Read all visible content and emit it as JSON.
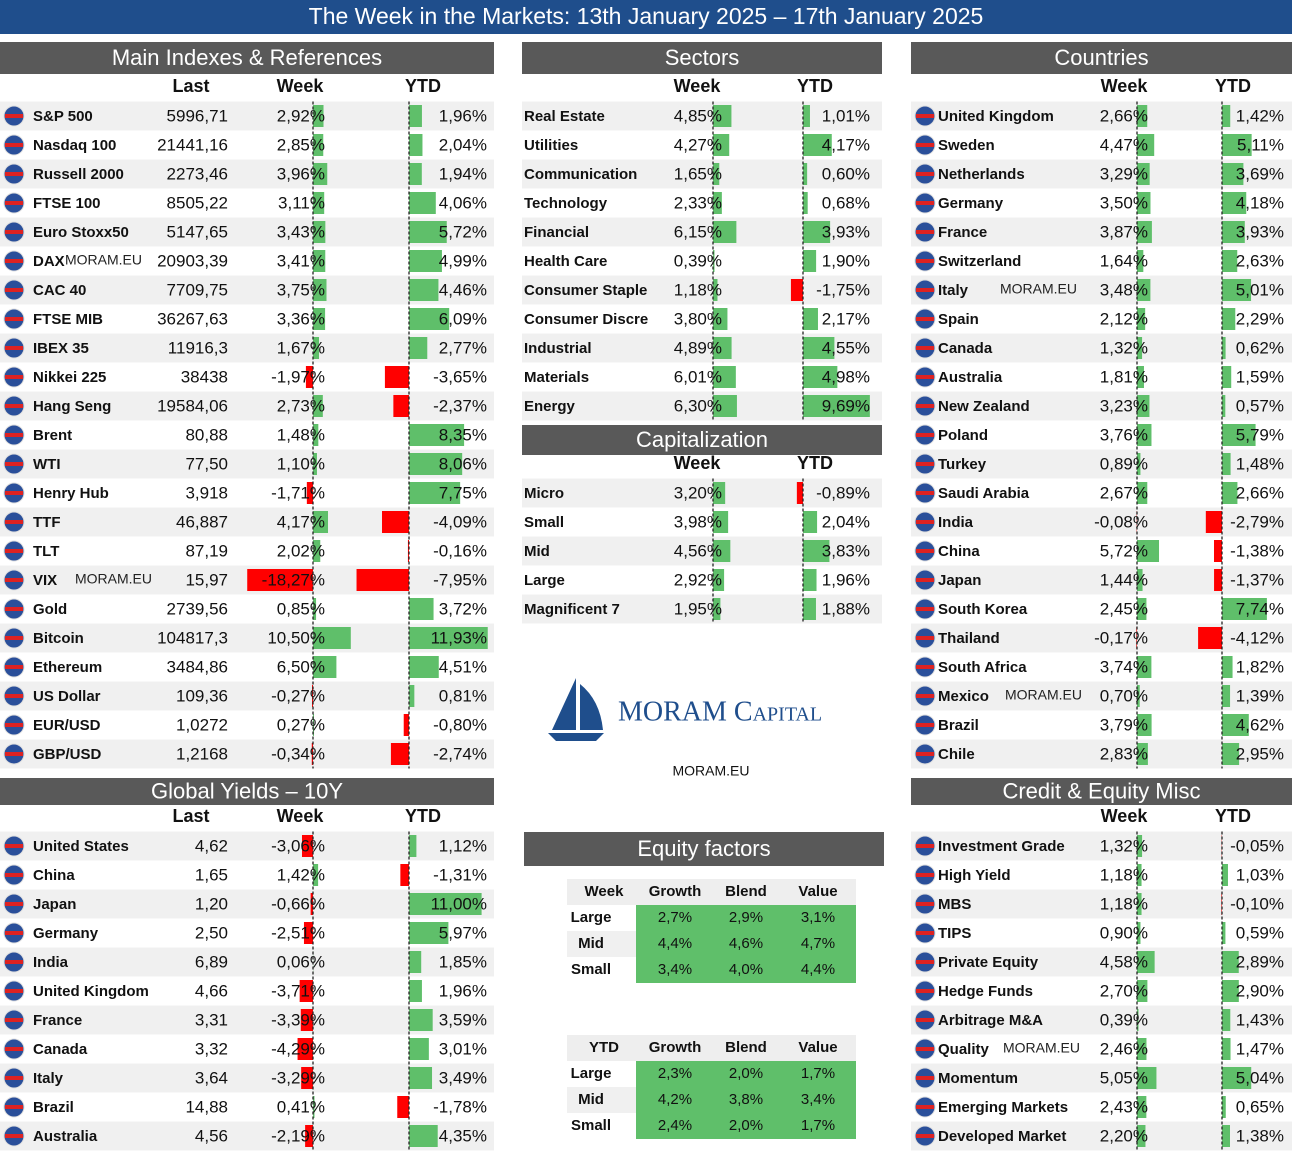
{
  "title": "The Week in the Markets: 13th January  2025 – 17th January 2025",
  "watermark": "MORAM.EU",
  "indexes": {
    "title": "Main Indexes & References",
    "columns": [
      "Last",
      "Week",
      "YTD"
    ],
    "rows": [
      [
        "S&P 500",
        "5996,71",
        "2,92%",
        "1,96%"
      ],
      [
        "Nasdaq 100",
        "21441,16",
        "2,85%",
        "2,04%"
      ],
      [
        "Russell 2000",
        "2273,46",
        "3,96%",
        "1,94%"
      ],
      [
        "FTSE 100",
        "8505,22",
        "3,11%",
        "4,06%"
      ],
      [
        "Euro Stoxx50",
        "5147,65",
        "3,43%",
        "5,72%"
      ],
      [
        "DAX",
        "20903,39",
        "3,41%",
        "4,99%"
      ],
      [
        "CAC 40",
        "7709,75",
        "3,75%",
        "4,46%"
      ],
      [
        "FTSE MIB",
        "36267,63",
        "3,36%",
        "6,09%"
      ],
      [
        "IBEX 35",
        "11916,3",
        "1,67%",
        "2,77%"
      ],
      [
        "Nikkei 225",
        "38438",
        "-1,97%",
        "-3,65%"
      ],
      [
        "Hang Seng",
        "19584,06",
        "2,73%",
        "-2,37%"
      ],
      [
        "Brent",
        "80,88",
        "1,48%",
        "8,35%"
      ],
      [
        "WTI",
        "77,50",
        "1,10%",
        "8,06%"
      ],
      [
        "Henry Hub",
        "3,918",
        "-1,71%",
        "7,75%"
      ],
      [
        "TTF",
        "46,887",
        "4,17%",
        "-4,09%"
      ],
      [
        "TLT",
        "87,19",
        "2,02%",
        "-0,16%"
      ],
      [
        "VIX",
        "15,97",
        "-18,27%",
        "-7,95%"
      ],
      [
        "Gold",
        "2739,56",
        "0,85%",
        "3,72%"
      ],
      [
        "Bitcoin",
        "104817,3",
        "10,50%",
        "11,93%"
      ],
      [
        "Ethereum",
        "3484,86",
        "6,50%",
        "4,51%"
      ],
      [
        "US Dollar",
        "109,36",
        "-0,27%",
        "0,81%"
      ],
      [
        "EUR/USD",
        "1,0272",
        "0,27%",
        "-0,80%"
      ],
      [
        "GBP/USD",
        "1,2168",
        "-0,34%",
        "-2,74%"
      ]
    ]
  },
  "yields": {
    "title": "Global Yields – 10Y",
    "columns": [
      "Last",
      "Week",
      "YTD"
    ],
    "rows": [
      [
        "United States",
        "4,62",
        "-3,06%",
        "1,12%"
      ],
      [
        "China",
        "1,65",
        "1,42%",
        "-1,31%"
      ],
      [
        "Japan",
        "1,20",
        "-0,66%",
        "11,00%"
      ],
      [
        "Germany",
        "2,50",
        "-2,51%",
        "5,97%"
      ],
      [
        "India",
        "6,89",
        "0,06%",
        "1,85%"
      ],
      [
        "United Kingdom",
        "4,66",
        "-3,71%",
        "1,96%"
      ],
      [
        "France",
        "3,31",
        "-3,39%",
        "3,59%"
      ],
      [
        "Canada",
        "3,32",
        "-4,29%",
        "3,01%"
      ],
      [
        "Italy",
        "3,64",
        "-3,29%",
        "3,49%"
      ],
      [
        "Brazil",
        "14,88",
        "0,41%",
        "-1,78%"
      ],
      [
        "Australia",
        "4,56",
        "-2,19%",
        "4,35%"
      ]
    ]
  },
  "sectors": {
    "title": "Sectors",
    "columns": [
      "Week",
      "YTD"
    ],
    "rows": [
      [
        "Real Estate",
        "4,85%",
        "1,01%"
      ],
      [
        "Utilities",
        "4,27%",
        "4,17%"
      ],
      [
        "Communication",
        "1,65%",
        "0,60%"
      ],
      [
        "Technology",
        "2,33%",
        "0,68%"
      ],
      [
        "Financial",
        "6,15%",
        "3,93%"
      ],
      [
        "Health Care",
        "0,39%",
        "1,90%"
      ],
      [
        "Consumer Staple",
        "1,18%",
        "-1,75%"
      ],
      [
        "Consumer Discre",
        "3,80%",
        "2,17%"
      ],
      [
        "Industrial",
        "4,89%",
        "4,55%"
      ],
      [
        "Materials",
        "6,01%",
        "4,98%"
      ],
      [
        "Energy",
        "6,30%",
        "9,69%"
      ]
    ]
  },
  "capitalization": {
    "title": "Capitalization",
    "columns": [
      "Week",
      "YTD"
    ],
    "rows": [
      [
        "Micro",
        "3,20%",
        "-0,89%"
      ],
      [
        "Small",
        "3,98%",
        "2,04%"
      ],
      [
        "Mid",
        "4,56%",
        "3,83%"
      ],
      [
        "Large",
        "2,92%",
        "1,96%"
      ],
      [
        "Magnificent 7",
        "1,95%",
        "1,88%"
      ]
    ]
  },
  "countries": {
    "title": "Countries",
    "columns": [
      "Week",
      "YTD"
    ],
    "rows": [
      [
        "United Kingdom",
        "2,66%",
        "1,42%"
      ],
      [
        "Sweden",
        "4,47%",
        "5,11%"
      ],
      [
        "Netherlands",
        "3,29%",
        "3,69%"
      ],
      [
        "Germany",
        "3,50%",
        "4,18%"
      ],
      [
        "France",
        "3,87%",
        "3,93%"
      ],
      [
        "Switzerland",
        "1,64%",
        "2,63%"
      ],
      [
        "Italy",
        "3,48%",
        "5,01%"
      ],
      [
        "Spain",
        "2,12%",
        "2,29%"
      ],
      [
        "Canada",
        "1,32%",
        "0,62%"
      ],
      [
        "Australia",
        "1,81%",
        "1,59%"
      ],
      [
        "New Zealand",
        "3,23%",
        "0,57%"
      ],
      [
        "Poland",
        "3,76%",
        "5,79%"
      ],
      [
        "Turkey",
        "0,89%",
        "1,48%"
      ],
      [
        "Saudi Arabia",
        "2,67%",
        "2,66%"
      ],
      [
        "India",
        "-0,08%",
        "-2,79%"
      ],
      [
        "China",
        "5,72%",
        "-1,38%"
      ],
      [
        "Japan",
        "1,44%",
        "-1,37%"
      ],
      [
        "South Korea",
        "2,45%",
        "7,74%"
      ],
      [
        "Thailand",
        "-0,17%",
        "-4,12%"
      ],
      [
        "South Africa",
        "3,74%",
        "1,82%"
      ],
      [
        "Mexico",
        "0,70%",
        "1,39%"
      ],
      [
        "Brazil",
        "3,79%",
        "4,62%"
      ],
      [
        "Chile",
        "2,83%",
        "2,95%"
      ]
    ]
  },
  "credit": {
    "title": "Credit & Equity Misc",
    "columns": [
      "Week",
      "YTD"
    ],
    "rows": [
      [
        "Investment Grade",
        "1,32%",
        "-0,05%"
      ],
      [
        "High Yield",
        "1,18%",
        "1,03%"
      ],
      [
        "MBS",
        "1,18%",
        "-0,10%"
      ],
      [
        "TIPS",
        "0,90%",
        "0,59%"
      ],
      [
        "Private Equity",
        "4,58%",
        "2,89%"
      ],
      [
        "Hedge Funds",
        "2,70%",
        "2,90%"
      ],
      [
        "Arbitrage M&A",
        "0,39%",
        "1,43%"
      ],
      [
        "Quality",
        "2,46%",
        "1,47%"
      ],
      [
        "Momentum",
        "5,05%",
        "5,04%"
      ],
      [
        "Emerging Markets",
        "2,43%",
        "0,65%"
      ],
      [
        "Developed Market",
        "2,20%",
        "1,38%"
      ]
    ]
  },
  "equity_factors": {
    "title": "Equity factors",
    "tables": [
      {
        "columns": [
          "Week",
          "Growth",
          "Blend",
          "Value"
        ],
        "rows": [
          [
            "Large",
            "2,7%",
            "2,9%",
            "3,1%"
          ],
          [
            "Mid",
            "4,4%",
            "4,6%",
            "4,7%"
          ],
          [
            "Small",
            "3,4%",
            "4,0%",
            "4,4%"
          ]
        ]
      },
      {
        "columns": [
          "YTD",
          "Growth",
          "Blend",
          "Value"
        ],
        "rows": [
          [
            "Large",
            "2,3%",
            "2,0%",
            "1,7%"
          ],
          [
            "Mid",
            "4,2%",
            "3,8%",
            "3,4%"
          ],
          [
            "Small",
            "2,4%",
            "2,0%",
            "1,7%"
          ]
        ]
      }
    ]
  },
  "logo": {
    "name": "MORAM Capital",
    "site": "MORAM.EU"
  }
}
